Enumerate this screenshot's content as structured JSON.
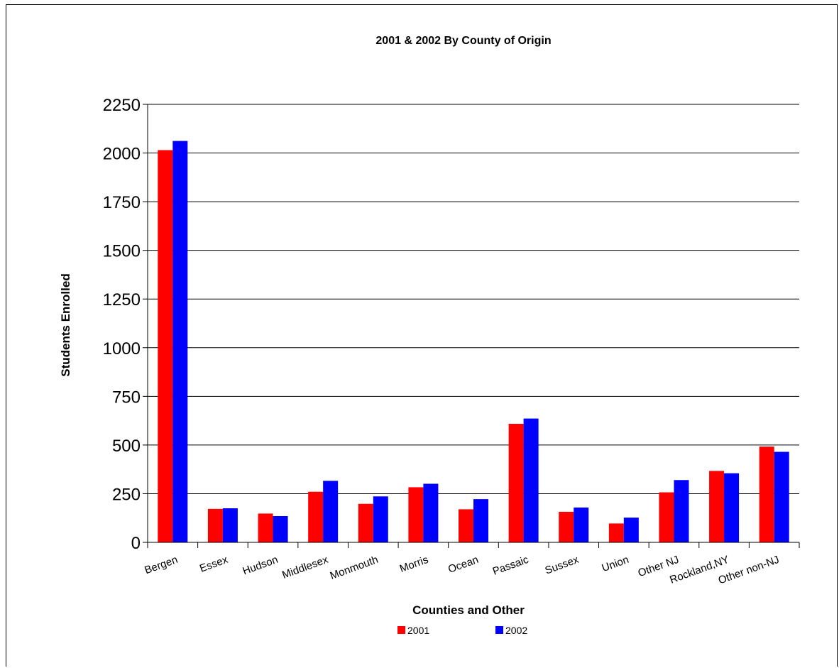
{
  "chart_data": {
    "type": "bar",
    "title": "2001 & 2002 By County of Origin",
    "xlabel": "Counties and Other",
    "ylabel": "Students Enrolled",
    "ylim": [
      0,
      2250
    ],
    "yticks": [
      0,
      250,
      500,
      750,
      1000,
      1250,
      1500,
      1750,
      2000,
      2250
    ],
    "grid": true,
    "legend_position": "bottom",
    "categories": [
      "Bergen",
      "Essex",
      "Hudson",
      "Middlesex",
      "Monmouth",
      "Morris",
      "Ocean",
      "Passaic",
      "Sussex",
      "Union",
      "Other NJ",
      "Rockland,NY",
      "Other non-NJ"
    ],
    "series": [
      {
        "name": "2001",
        "color": "#ff0000",
        "values": [
          2015,
          172,
          148,
          260,
          198,
          283,
          170,
          609,
          157,
          97,
          257,
          367,
          492
        ]
      },
      {
        "name": "2002",
        "color": "#0000ff",
        "values": [
          2062,
          175,
          135,
          316,
          236,
          301,
          222,
          636,
          179,
          127,
          320,
          355,
          465
        ]
      }
    ]
  }
}
